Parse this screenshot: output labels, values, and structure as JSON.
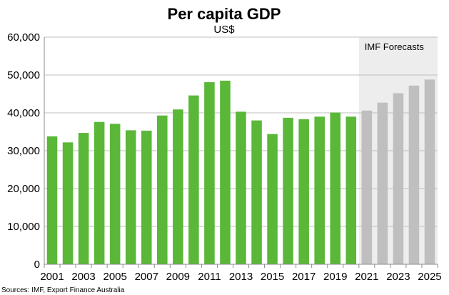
{
  "chart_data": {
    "type": "bar",
    "title": "Per capita GDP",
    "subtitle": "US$",
    "xlabel": "",
    "ylabel": "",
    "ylim": [
      0,
      60000
    ],
    "yticks": [
      "0",
      "10,000",
      "20,000",
      "30,000",
      "40,000",
      "50,000",
      "60,000"
    ],
    "ytick_values": [
      0,
      10000,
      20000,
      30000,
      40000,
      50000,
      60000
    ],
    "categories": [
      "2001",
      "2002",
      "2003",
      "2004",
      "2005",
      "2006",
      "2007",
      "2008",
      "2009",
      "2010",
      "2011",
      "2012",
      "2013",
      "2014",
      "2015",
      "2016",
      "2017",
      "2018",
      "2019",
      "2020",
      "2021",
      "2022",
      "2023",
      "2024",
      "2025"
    ],
    "xtick_labels": [
      "2001",
      "",
      "2003",
      "",
      "2005",
      "",
      "2007",
      "",
      "2009",
      "",
      "2011",
      "",
      "2013",
      "",
      "2015",
      "",
      "2017",
      "",
      "2019",
      "",
      "2021",
      "",
      "2023",
      "",
      "2025"
    ],
    "series": [
      {
        "name": "",
        "values": [
          33800,
          32200,
          34700,
          37600,
          37100,
          35400,
          35300,
          39300,
          40900,
          44600,
          48100,
          48500,
          40300,
          38000,
          34400,
          38700,
          38300,
          39000,
          40100,
          39000,
          40600,
          42700,
          45200,
          47200,
          48800
        ],
        "kind": [
          "actual",
          "actual",
          "actual",
          "actual",
          "actual",
          "actual",
          "actual",
          "actual",
          "actual",
          "actual",
          "actual",
          "actual",
          "actual",
          "actual",
          "actual",
          "actual",
          "actual",
          "actual",
          "actual",
          "actual",
          "forecast",
          "forecast",
          "forecast",
          "forecast",
          "forecast"
        ]
      }
    ],
    "forecast_region": {
      "label": "IMF Forecasts",
      "start": "2021",
      "end": "2025"
    },
    "colors": {
      "actual": "#5ab738",
      "forecast": "#bfbfbf",
      "forecast_band": "#ededed",
      "grid": "#bfbfbf",
      "axis": "#8c8c8c"
    },
    "grid": true,
    "legend": "none",
    "source": "Sources: IMF, Export Finance Australia"
  }
}
